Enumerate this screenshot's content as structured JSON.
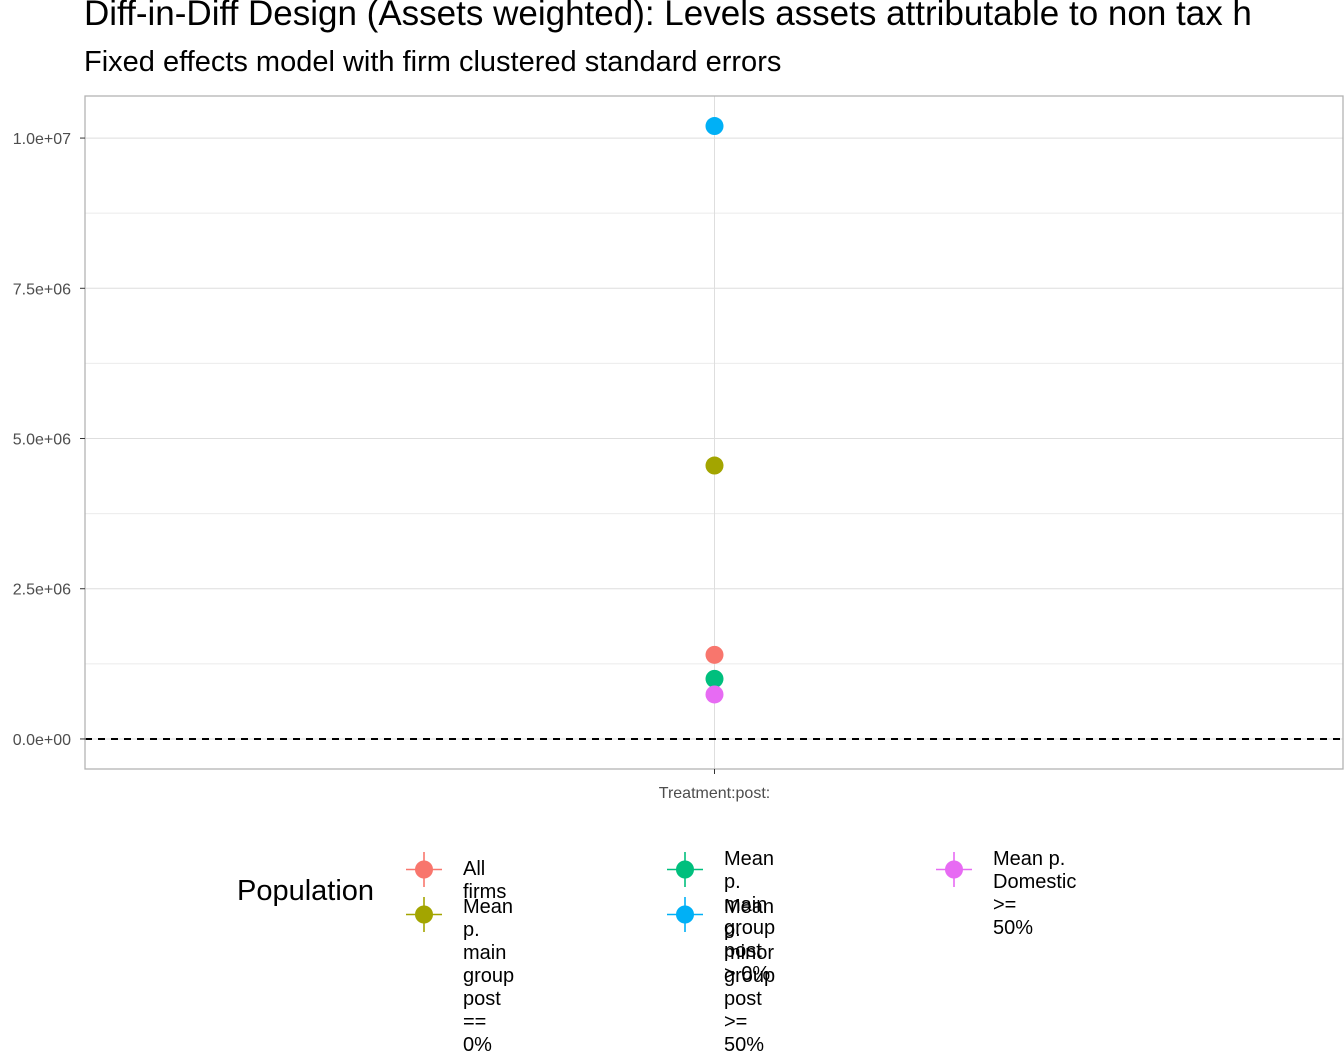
{
  "title": "Diff-in-Diff Design (Assets weighted): Levels assets attributable to non tax h",
  "subtitle": "Fixed effects model with firm clustered standard errors",
  "chart_data": {
    "type": "scatter",
    "x_categories": [
      "Treatment:post:"
    ],
    "xlabel": "",
    "ylabel": "",
    "ylim": [
      -500000,
      10700000
    ],
    "y_ticks": [
      0,
      2500000,
      5000000,
      7500000,
      10000000
    ],
    "y_tick_labels": [
      "0.0e+00",
      "2.5e+06",
      "5.0e+06",
      "7.5e+06",
      "1.0e+07"
    ],
    "reference_line": {
      "y": 0,
      "style": "dashed"
    },
    "grid": true,
    "legend_title": "Population",
    "legend_position": "bottom",
    "series": [
      {
        "name": "All firms",
        "label": "All firms",
        "color": "#F8766D",
        "x": "Treatment:post:",
        "y": 1400000
      },
      {
        "name": "Mean p. main group post == 0%",
        "label": "Mean p. main group\npost == 0%",
        "color": "#A3A500",
        "x": "Treatment:post:",
        "y": 4550000
      },
      {
        "name": "Mean p. main group post > 0%",
        "label": "Mean p. main group\npost > 0%",
        "color": "#00BF7D",
        "x": "Treatment:post:",
        "y": 1000000
      },
      {
        "name": "Mean p. minor group post >= 50%",
        "label": "Mean p. minor group\npost >= 50%",
        "color": "#00B0F6",
        "x": "Treatment:post:",
        "y": 10200000
      },
      {
        "name": "Mean p. Domestic >= 50%",
        "label": "Mean p. Domestic >=\n50%",
        "color": "#E76BF3",
        "x": "Treatment:post:",
        "y": 740000
      }
    ]
  }
}
